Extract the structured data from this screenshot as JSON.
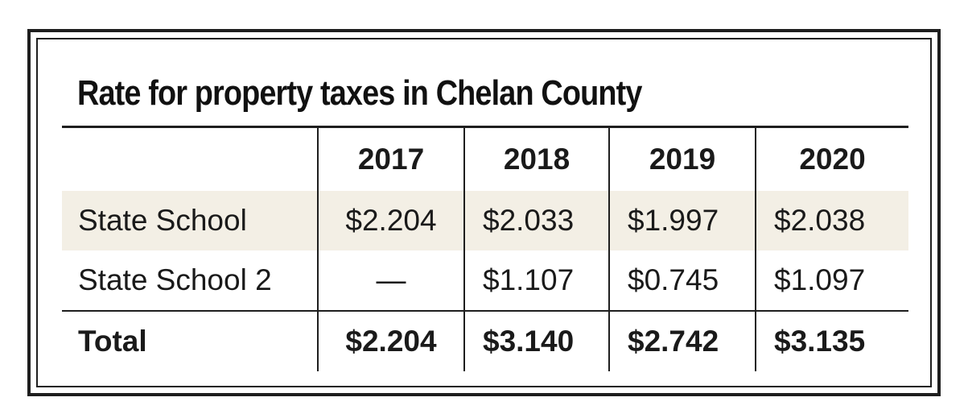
{
  "title": "Rate for property taxes in Chelan County",
  "chart_data": {
    "type": "table",
    "title": "Rate for property taxes in Chelan County",
    "columns": [
      "",
      "2017",
      "2018",
      "2019",
      "2020"
    ],
    "rows": [
      {
        "label": "State School",
        "values": [
          "$2.204",
          "$2.033",
          "$1.997",
          "$2.038"
        ]
      },
      {
        "label": "State School 2",
        "values": [
          "—",
          "$1.107",
          "$0.745",
          "$1.097"
        ]
      },
      {
        "label": "Total",
        "values": [
          "$2.204",
          "$3.140",
          "$2.742",
          "$3.135"
        ]
      }
    ],
    "colors": {
      "shaded_row": "#f3efe5",
      "border": "#1e1e1e",
      "text": "#1a1a1a"
    }
  }
}
